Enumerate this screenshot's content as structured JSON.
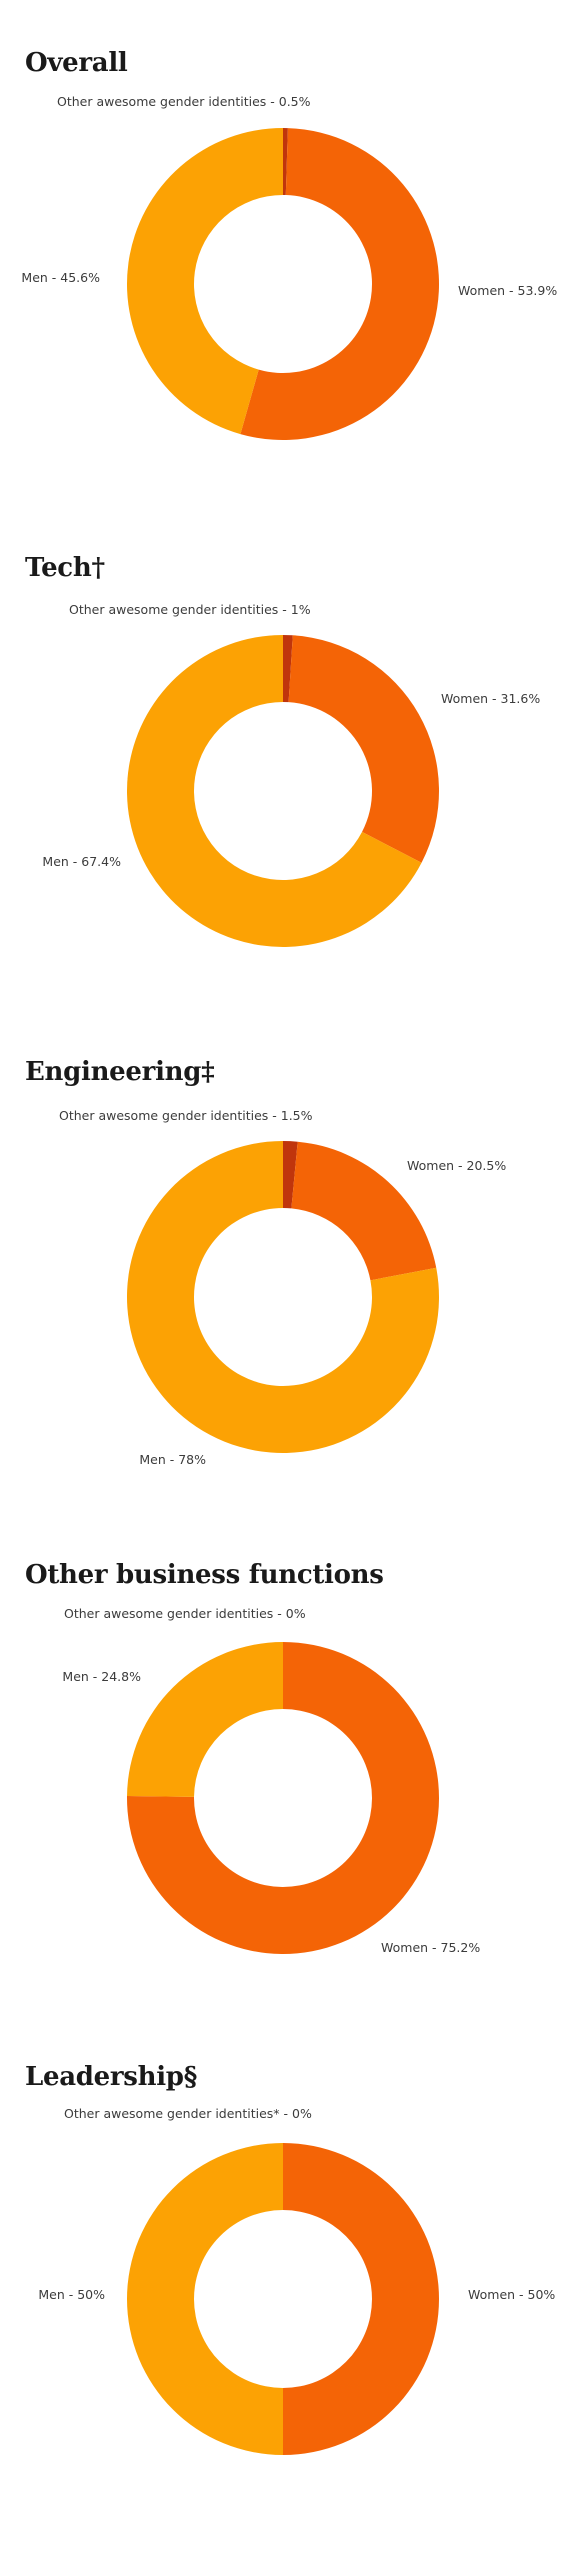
{
  "colors": {
    "women": "#F46406",
    "men": "#FCA204",
    "other": "#C0350C"
  },
  "chart_data": [
    {
      "type": "pie",
      "title": "Overall",
      "slices": [
        {
          "label": "Other awesome gender identities - 0.5%",
          "value": 0.5,
          "color": "#C0350C"
        },
        {
          "label": "Women - 53.9%",
          "value": 53.9,
          "color": "#F46406"
        },
        {
          "label": "Men - 45.6%",
          "value": 45.6,
          "color": "#FCA204"
        }
      ]
    },
    {
      "type": "pie",
      "title": "Tech†",
      "slices": [
        {
          "label": "Other awesome gender identities - 1%",
          "value": 1,
          "color": "#C0350C"
        },
        {
          "label": "Women - 31.6%",
          "value": 31.6,
          "color": "#F46406"
        },
        {
          "label": "Men - 67.4%",
          "value": 67.4,
          "color": "#FCA204"
        }
      ]
    },
    {
      "type": "pie",
      "title": "Engineering‡",
      "slices": [
        {
          "label": "Other awesome gender identities - 1.5%",
          "value": 1.5,
          "color": "#C0350C"
        },
        {
          "label": "Women - 20.5%",
          "value": 20.5,
          "color": "#F46406"
        },
        {
          "label": "Men - 78%",
          "value": 78,
          "color": "#FCA204"
        }
      ]
    },
    {
      "type": "pie",
      "title": "Other business functions",
      "slices": [
        {
          "label": "Other awesome gender identities - 0%",
          "value": 0,
          "color": "#C0350C"
        },
        {
          "label": "Women - 75.2%",
          "value": 75.2,
          "color": "#F46406"
        },
        {
          "label": "Men - 24.8%",
          "value": 24.8,
          "color": "#FCA204"
        }
      ]
    },
    {
      "type": "pie",
      "title": "Leadership§",
      "slices": [
        {
          "label": "Other awesome gender identities* - 0%",
          "value": 0,
          "color": "#C0350C"
        },
        {
          "label": "Women - 50%",
          "value": 50,
          "color": "#F46406"
        },
        {
          "label": "Men - 50%",
          "value": 50,
          "color": "#FCA204"
        }
      ]
    }
  ]
}
